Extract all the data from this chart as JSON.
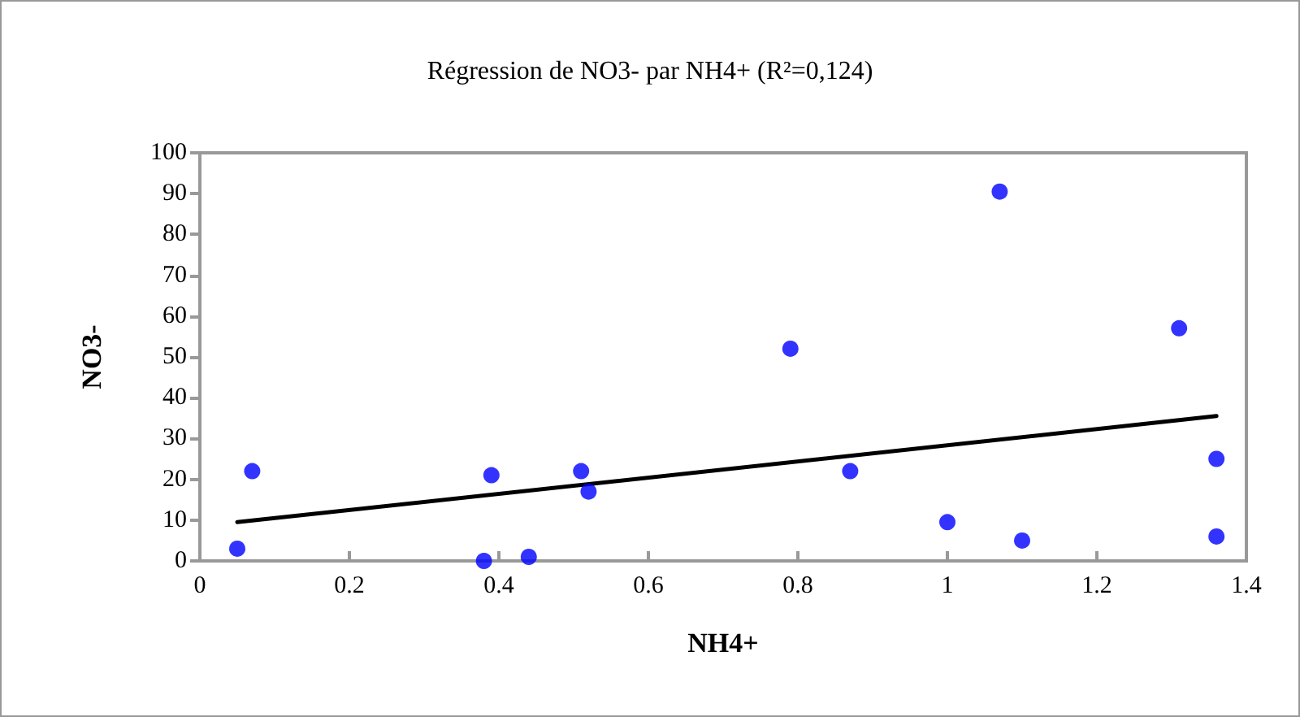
{
  "chart_data": {
    "type": "scatter",
    "title": "Régression de NO3- par NH4+ (R²=0,124)",
    "xlabel": "NH4+",
    "ylabel": "NO3-",
    "xlim": [
      0,
      1.4
    ],
    "xticks": [
      0,
      0.2,
      0.4,
      0.6,
      0.8,
      1,
      1.2,
      1.4
    ],
    "ylim": [
      0,
      100
    ],
    "yticks": [
      0,
      10,
      20,
      30,
      40,
      50,
      60,
      70,
      80,
      90,
      100
    ],
    "grid": false,
    "marker": "circle",
    "series": [
      {
        "color": "#0000ff",
        "x": [
          0.05,
          0.07,
          0.38,
          0.39,
          0.44,
          0.51,
          0.52,
          0.79,
          0.87,
          1.0,
          1.07,
          1.1,
          1.31,
          1.36,
          1.36
        ],
        "values": [
          3,
          22,
          0,
          21,
          1,
          22,
          17,
          52,
          22,
          9.5,
          90.5,
          5,
          57,
          25,
          6
        ]
      },
      {
        "type": "line",
        "color": "#000000",
        "x": [
          0.05,
          1.36
        ],
        "values": [
          9.5,
          35.5
        ],
        "marker": "none",
        "line_style": "solid"
      }
    ]
  }
}
